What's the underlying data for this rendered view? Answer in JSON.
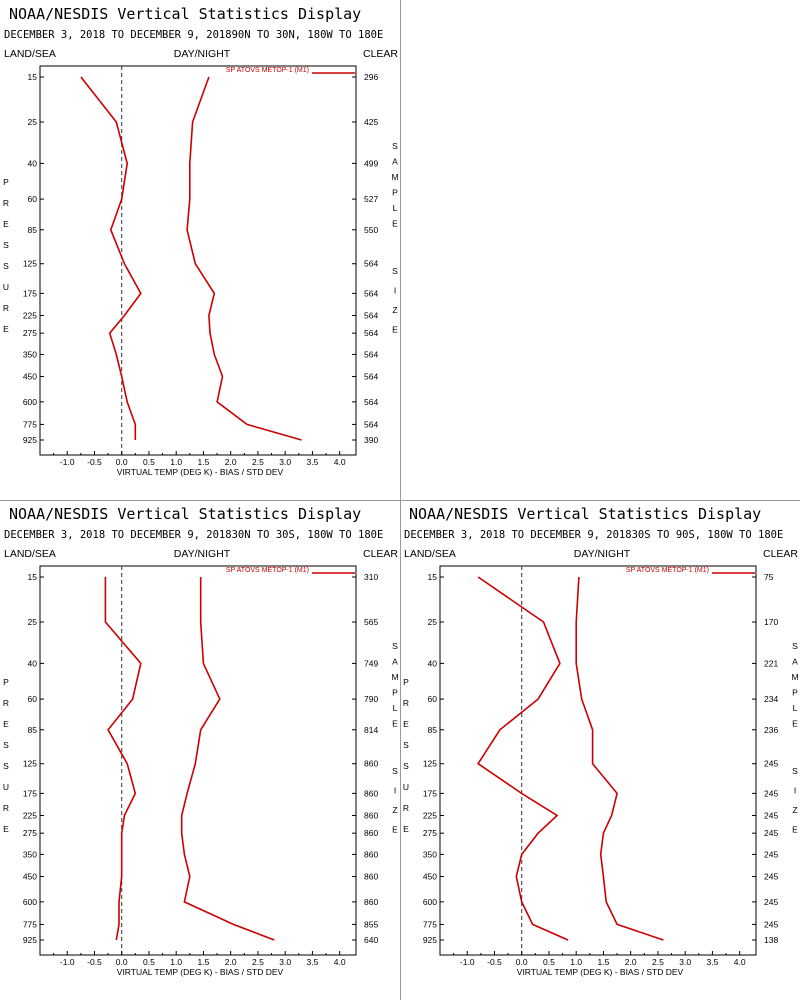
{
  "colors": {
    "series": "#cc0000",
    "axis": "#000000",
    "zero_line": "#333333",
    "divider": "#999999"
  },
  "chart_data": [
    {
      "type": "line",
      "title": "NOAA/NESDIS Vertical Statistics Display",
      "subtitle": "DECEMBER 3, 2018 TO DECEMBER 9, 201890N TO 30N, 180W TO 180E",
      "left_header": "LAND/SEA",
      "center_header": "DAY/NIGHT",
      "right_header": "CLEAR",
      "ylabel": "PRESSURE",
      "right_label": "SAMPLE SIZE",
      "xlabel": "VIRTUAL TEMP (DEG K) - BIAS / STD DEV",
      "legend": "SP ATOVS METOP-1 (M1)",
      "pressure_levels": [
        "15",
        "25",
        "40",
        "60",
        "85",
        "125",
        "175",
        "225",
        "275",
        "350",
        "450",
        "600",
        "775",
        "925"
      ],
      "sample_size": [
        "296",
        "425",
        "499",
        "527",
        "550",
        "564",
        "564",
        "564",
        "564",
        "564",
        "564",
        "564",
        "564",
        "390"
      ],
      "x_ticks": [
        "-1.0",
        "-0.5",
        "0.0",
        "0.5",
        "1.0",
        "1.5",
        "2.0",
        "2.5",
        "3.0",
        "3.5",
        "4.0"
      ],
      "xlim": [
        -1.5,
        4.3
      ],
      "series": [
        {
          "name": "BIAS",
          "values": [
            -0.75,
            -0.1,
            0.1,
            0.0,
            -0.2,
            0.05,
            0.35,
            0.05,
            -0.22,
            -0.1,
            0.0,
            0.1,
            0.25,
            0.25
          ]
        },
        {
          "name": "STD DEV",
          "values": [
            1.6,
            1.3,
            1.25,
            1.25,
            1.2,
            1.35,
            1.7,
            1.6,
            1.62,
            1.7,
            1.85,
            1.75,
            2.3,
            3.3
          ]
        }
      ]
    },
    {
      "type": "line",
      "title": "NOAA/NESDIS Vertical Statistics Display",
      "subtitle": "DECEMBER 3, 2018 TO DECEMBER 9, 201830N TO 30S, 180W TO 180E",
      "left_header": "LAND/SEA",
      "center_header": "DAY/NIGHT",
      "right_header": "CLEAR",
      "ylabel": "PRESSURE",
      "right_label": "SAMPLE SIZE",
      "xlabel": "VIRTUAL TEMP (DEG K) - BIAS / STD DEV",
      "legend": "SP ATOVS METOP-1 (M1)",
      "pressure_levels": [
        "15",
        "25",
        "40",
        "60",
        "85",
        "125",
        "175",
        "225",
        "275",
        "350",
        "450",
        "600",
        "775",
        "925"
      ],
      "sample_size": [
        "310",
        "565",
        "749",
        "790",
        "814",
        "860",
        "860",
        "860",
        "860",
        "860",
        "860",
        "860",
        "855",
        "640"
      ],
      "x_ticks": [
        "-1.0",
        "-0.5",
        "0.0",
        "0.5",
        "1.0",
        "1.5",
        "2.0",
        "2.5",
        "3.0",
        "3.5",
        "4.0"
      ],
      "xlim": [
        -1.5,
        4.3
      ],
      "series": [
        {
          "name": "BIAS",
          "values": [
            -0.3,
            -0.3,
            0.35,
            0.2,
            -0.25,
            0.1,
            0.25,
            0.05,
            0.0,
            0.0,
            0.0,
            -0.05,
            -0.05,
            -0.1
          ]
        },
        {
          "name": "STD DEV",
          "values": [
            1.45,
            1.45,
            1.5,
            1.8,
            1.45,
            1.35,
            1.2,
            1.1,
            1.1,
            1.15,
            1.25,
            1.15,
            2.05,
            2.8
          ]
        }
      ]
    },
    {
      "type": "line",
      "title": "NOAA/NESDIS Vertical Statistics Display",
      "subtitle": "DECEMBER 3, 2018 TO DECEMBER 9, 201830S TO 90S, 180W TO 180E",
      "left_header": "LAND/SEA",
      "center_header": "DAY/NIGHT",
      "right_header": "CLEAR",
      "ylabel": "PRESSURE",
      "right_label": "SAMPLE SIZE",
      "xlabel": "VIRTUAL TEMP (DEG K) - BIAS / STD DEV",
      "legend": "SP ATOVS METOP-1 (M1)",
      "pressure_levels": [
        "15",
        "25",
        "40",
        "60",
        "85",
        "125",
        "175",
        "225",
        "275",
        "350",
        "450",
        "600",
        "775",
        "925"
      ],
      "sample_size": [
        "75",
        "170",
        "221",
        "234",
        "236",
        "245",
        "245",
        "245",
        "245",
        "245",
        "245",
        "245",
        "245",
        "138"
      ],
      "x_ticks": [
        "-1.0",
        "-0.5",
        "0.0",
        "0.5",
        "1.0",
        "1.5",
        "2.0",
        "2.5",
        "3.0",
        "3.5",
        "4.0"
      ],
      "xlim": [
        -1.5,
        4.3
      ],
      "series": [
        {
          "name": "BIAS",
          "values": [
            -0.8,
            0.4,
            0.7,
            0.3,
            -0.4,
            -0.8,
            0.0,
            0.65,
            0.3,
            0.0,
            -0.1,
            0.0,
            0.2,
            0.85
          ]
        },
        {
          "name": "STD DEV",
          "values": [
            1.05,
            1.0,
            1.0,
            1.1,
            1.3,
            1.3,
            1.75,
            1.65,
            1.5,
            1.45,
            1.5,
            1.55,
            1.75,
            2.6
          ]
        }
      ]
    }
  ]
}
